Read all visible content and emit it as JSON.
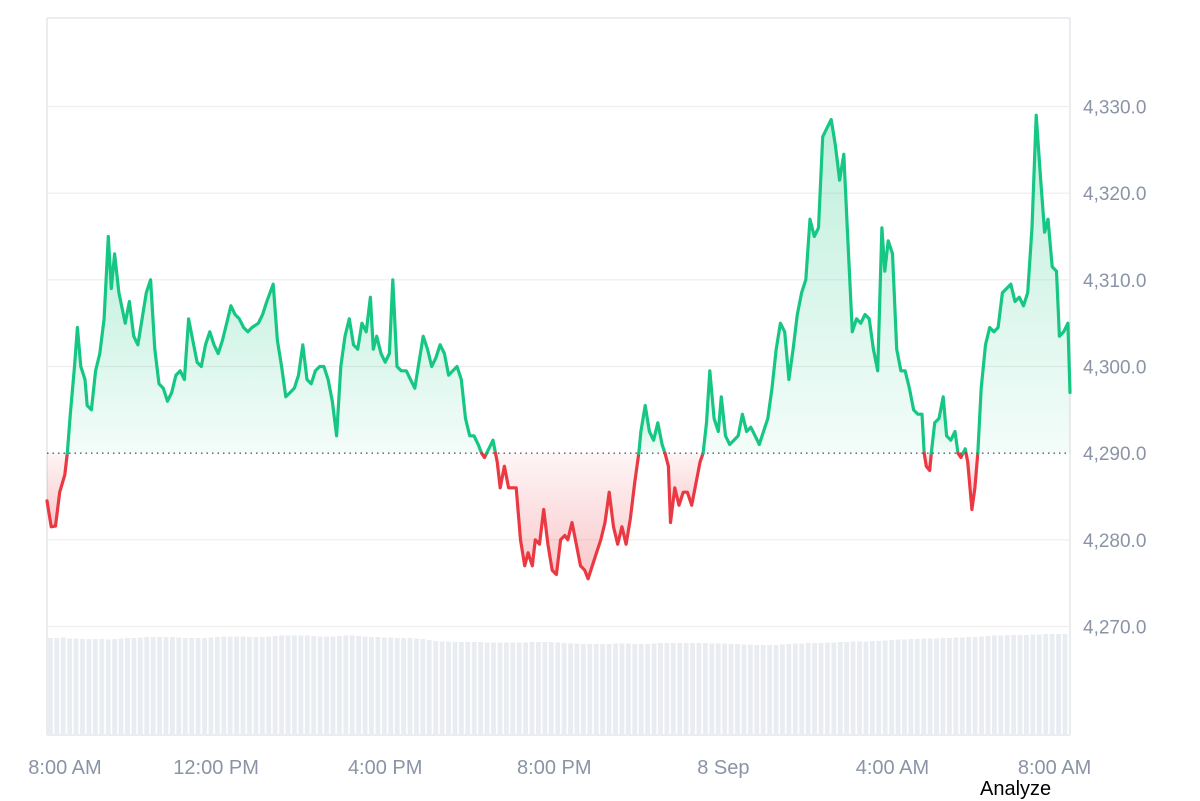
{
  "chart_data": {
    "type": "area",
    "baseline": 4290.0,
    "ylim": [
      4260,
      4340
    ],
    "y_ticks": [
      "4,330.0",
      "4,320.0",
      "4,310.0",
      "4,300.0",
      "4,290.0",
      "4,280.0",
      "4,270.0"
    ],
    "y_tick_values": [
      4330,
      4320,
      4310,
      4300,
      4290,
      4280,
      4270
    ],
    "x_ticks": [
      "8:00 AM",
      "12:00 PM",
      "4:00 PM",
      "8:00 PM",
      "8 Sep",
      "4:00 AM",
      "8:00 AM"
    ],
    "x_tick_hours": [
      0,
      4,
      8,
      12,
      16,
      20,
      24
    ],
    "xlim_hours": [
      0,
      24.2
    ],
    "grid": true,
    "colors": {
      "up": "#16c784",
      "down": "#ea3943",
      "volume": "#e9ecf1",
      "grid": "#eeeeee"
    },
    "price_series": [
      [
        0.0,
        4284.5
      ],
      [
        0.1,
        4281.5
      ],
      [
        0.2,
        4281.6
      ],
      [
        0.3,
        4285.5
      ],
      [
        0.42,
        4287.5
      ],
      [
        0.48,
        4290.0
      ],
      [
        0.55,
        4294.5
      ],
      [
        0.65,
        4300.0
      ],
      [
        0.72,
        4304.5
      ],
      [
        0.8,
        4300.0
      ],
      [
        0.9,
        4298.5
      ],
      [
        0.95,
        4295.5
      ],
      [
        1.05,
        4295.0
      ],
      [
        1.15,
        4299.5
      ],
      [
        1.25,
        4301.5
      ],
      [
        1.35,
        4305.5
      ],
      [
        1.45,
        4315.0
      ],
      [
        1.52,
        4309.0
      ],
      [
        1.6,
        4313.0
      ],
      [
        1.7,
        4308.5
      ],
      [
        1.85,
        4305.0
      ],
      [
        1.95,
        4307.5
      ],
      [
        2.05,
        4303.5
      ],
      [
        2.15,
        4302.5
      ],
      [
        2.25,
        4305.5
      ],
      [
        2.35,
        4308.5
      ],
      [
        2.45,
        4310.0
      ],
      [
        2.55,
        4302.0
      ],
      [
        2.65,
        4298.0
      ],
      [
        2.75,
        4297.5
      ],
      [
        2.85,
        4296.0
      ],
      [
        2.95,
        4297.0
      ],
      [
        3.05,
        4299.0
      ],
      [
        3.15,
        4299.5
      ],
      [
        3.25,
        4298.5
      ],
      [
        3.35,
        4305.5
      ],
      [
        3.45,
        4303.0
      ],
      [
        3.55,
        4300.5
      ],
      [
        3.65,
        4300.0
      ],
      [
        3.75,
        4302.5
      ],
      [
        3.85,
        4304.0
      ],
      [
        3.95,
        4302.5
      ],
      [
        4.05,
        4301.5
      ],
      [
        4.15,
        4303.0
      ],
      [
        4.25,
        4305.0
      ],
      [
        4.35,
        4307.0
      ],
      [
        4.45,
        4306.0
      ],
      [
        4.55,
        4305.5
      ],
      [
        4.65,
        4304.5
      ],
      [
        4.75,
        4304.0
      ],
      [
        4.85,
        4304.5
      ],
      [
        5.0,
        4305.0
      ],
      [
        5.1,
        4306.0
      ],
      [
        5.2,
        4307.5
      ],
      [
        5.35,
        4309.5
      ],
      [
        5.45,
        4303.0
      ],
      [
        5.55,
        4300.0
      ],
      [
        5.65,
        4296.5
      ],
      [
        5.75,
        4297.0
      ],
      [
        5.85,
        4297.5
      ],
      [
        5.95,
        4299.0
      ],
      [
        6.05,
        4302.5
      ],
      [
        6.15,
        4298.5
      ],
      [
        6.25,
        4298.0
      ],
      [
        6.35,
        4299.5
      ],
      [
        6.45,
        4300.0
      ],
      [
        6.55,
        4300.0
      ],
      [
        6.65,
        4298.5
      ],
      [
        6.75,
        4296.0
      ],
      [
        6.85,
        4292.0
      ],
      [
        6.95,
        4300.0
      ],
      [
        7.05,
        4303.5
      ],
      [
        7.15,
        4305.5
      ],
      [
        7.25,
        4302.5
      ],
      [
        7.35,
        4302.0
      ],
      [
        7.45,
        4305.0
      ],
      [
        7.55,
        4304.0
      ],
      [
        7.65,
        4308.0
      ],
      [
        7.72,
        4302.0
      ],
      [
        7.8,
        4303.5
      ],
      [
        7.9,
        4301.5
      ],
      [
        8.0,
        4300.5
      ],
      [
        8.1,
        4301.5
      ],
      [
        8.18,
        4310.0
      ],
      [
        8.28,
        4300.0
      ],
      [
        8.38,
        4299.5
      ],
      [
        8.5,
        4299.5
      ],
      [
        8.6,
        4298.5
      ],
      [
        8.7,
        4297.5
      ],
      [
        8.8,
        4300.5
      ],
      [
        8.9,
        4303.5
      ],
      [
        9.0,
        4302.0
      ],
      [
        9.1,
        4300.0
      ],
      [
        9.2,
        4301.0
      ],
      [
        9.3,
        4302.5
      ],
      [
        9.4,
        4301.5
      ],
      [
        9.5,
        4299.0
      ],
      [
        9.6,
        4299.5
      ],
      [
        9.7,
        4300.0
      ],
      [
        9.8,
        4298.5
      ],
      [
        9.9,
        4294.0
      ],
      [
        10.0,
        4292.0
      ],
      [
        10.1,
        4292.0
      ],
      [
        10.2,
        4291.0
      ],
      [
        10.28,
        4290.0
      ],
      [
        10.35,
        4289.5
      ],
      [
        10.45,
        4290.5
      ],
      [
        10.55,
        4291.5
      ],
      [
        10.65,
        4289.0
      ],
      [
        10.72,
        4286.0
      ],
      [
        10.82,
        4288.5
      ],
      [
        10.92,
        4286.0
      ],
      [
        11.0,
        4286.0
      ],
      [
        11.1,
        4286.0
      ],
      [
        11.2,
        4280.0
      ],
      [
        11.3,
        4277.0
      ],
      [
        11.38,
        4278.5
      ],
      [
        11.48,
        4277.0
      ],
      [
        11.55,
        4280.0
      ],
      [
        11.65,
        4279.5
      ],
      [
        11.75,
        4283.5
      ],
      [
        11.85,
        4279.5
      ],
      [
        11.95,
        4276.5
      ],
      [
        12.05,
        4276.0
      ],
      [
        12.15,
        4280.0
      ],
      [
        12.25,
        4280.5
      ],
      [
        12.32,
        4280.0
      ],
      [
        12.42,
        4282.0
      ],
      [
        12.52,
        4279.5
      ],
      [
        12.62,
        4277.0
      ],
      [
        12.72,
        4276.5
      ],
      [
        12.8,
        4275.5
      ],
      [
        12.9,
        4277.0
      ],
      [
        13.0,
        4278.5
      ],
      [
        13.1,
        4280.0
      ],
      [
        13.2,
        4282.0
      ],
      [
        13.3,
        4285.5
      ],
      [
        13.4,
        4281.5
      ],
      [
        13.5,
        4279.5
      ],
      [
        13.6,
        4281.5
      ],
      [
        13.7,
        4279.5
      ],
      [
        13.8,
        4282.5
      ],
      [
        13.9,
        4286.5
      ],
      [
        14.0,
        4290.0
      ],
      [
        14.05,
        4292.5
      ],
      [
        14.15,
        4295.5
      ],
      [
        14.25,
        4292.5
      ],
      [
        14.35,
        4291.5
      ],
      [
        14.45,
        4293.5
      ],
      [
        14.55,
        4291.0
      ],
      [
        14.62,
        4290.0
      ],
      [
        14.7,
        4288.5
      ],
      [
        14.75,
        4282.0
      ],
      [
        14.85,
        4286.0
      ],
      [
        14.95,
        4284.0
      ],
      [
        15.05,
        4285.5
      ],
      [
        15.15,
        4285.5
      ],
      [
        15.25,
        4284.0
      ],
      [
        15.35,
        4286.5
      ],
      [
        15.45,
        4289.0
      ],
      [
        15.52,
        4290.0
      ],
      [
        15.6,
        4293.5
      ],
      [
        15.68,
        4299.5
      ],
      [
        15.78,
        4294.0
      ],
      [
        15.88,
        4292.5
      ],
      [
        15.95,
        4296.5
      ],
      [
        16.05,
        4292.0
      ],
      [
        16.15,
        4291.0
      ],
      [
        16.25,
        4291.5
      ],
      [
        16.35,
        4292.0
      ],
      [
        16.45,
        4294.5
      ],
      [
        16.55,
        4292.5
      ],
      [
        16.65,
        4293.0
      ],
      [
        16.75,
        4292.0
      ],
      [
        16.85,
        4291.0
      ],
      [
        16.95,
        4292.5
      ],
      [
        17.05,
        4294.0
      ],
      [
        17.15,
        4297.5
      ],
      [
        17.25,
        4302.0
      ],
      [
        17.35,
        4305.0
      ],
      [
        17.45,
        4304.0
      ],
      [
        17.55,
        4298.5
      ],
      [
        17.65,
        4302.0
      ],
      [
        17.75,
        4306.0
      ],
      [
        17.85,
        4308.5
      ],
      [
        17.95,
        4310.0
      ],
      [
        18.05,
        4317.0
      ],
      [
        18.15,
        4315.0
      ],
      [
        18.25,
        4316.0
      ],
      [
        18.35,
        4326.5
      ],
      [
        18.45,
        4327.5
      ],
      [
        18.55,
        4328.5
      ],
      [
        18.65,
        4325.5
      ],
      [
        18.75,
        4321.5
      ],
      [
        18.85,
        4324.5
      ],
      [
        18.95,
        4314.0
      ],
      [
        19.05,
        4304.0
      ],
      [
        19.15,
        4305.5
      ],
      [
        19.25,
        4305.0
      ],
      [
        19.35,
        4306.0
      ],
      [
        19.45,
        4305.5
      ],
      [
        19.55,
        4302.0
      ],
      [
        19.65,
        4299.5
      ],
      [
        19.75,
        4316.0
      ],
      [
        19.82,
        4311.0
      ],
      [
        19.9,
        4314.5
      ],
      [
        20.0,
        4313.0
      ],
      [
        20.1,
        4302.0
      ],
      [
        20.2,
        4299.5
      ],
      [
        20.3,
        4299.5
      ],
      [
        20.4,
        4297.5
      ],
      [
        20.5,
        4295.0
      ],
      [
        20.6,
        4294.5
      ],
      [
        20.7,
        4294.5
      ],
      [
        20.75,
        4290.0
      ],
      [
        20.8,
        4288.5
      ],
      [
        20.88,
        4288.0
      ],
      [
        20.92,
        4290.0
      ],
      [
        21.0,
        4293.5
      ],
      [
        21.1,
        4294.0
      ],
      [
        21.2,
        4296.5
      ],
      [
        21.28,
        4292.0
      ],
      [
        21.38,
        4291.5
      ],
      [
        21.48,
        4292.5
      ],
      [
        21.55,
        4290.0
      ],
      [
        21.62,
        4289.5
      ],
      [
        21.72,
        4290.5
      ],
      [
        21.78,
        4289.0
      ],
      [
        21.88,
        4283.5
      ],
      [
        21.95,
        4286.0
      ],
      [
        22.02,
        4290.0
      ],
      [
        22.1,
        4297.5
      ],
      [
        22.2,
        4302.5
      ],
      [
        22.3,
        4304.5
      ],
      [
        22.4,
        4304.0
      ],
      [
        22.5,
        4304.5
      ],
      [
        22.6,
        4308.5
      ],
      [
        22.7,
        4309.0
      ],
      [
        22.8,
        4309.5
      ],
      [
        22.9,
        4307.5
      ],
      [
        23.0,
        4308.0
      ],
      [
        23.1,
        4307.0
      ],
      [
        23.2,
        4308.5
      ],
      [
        23.3,
        4316.0
      ],
      [
        23.4,
        4329.0
      ],
      [
        23.5,
        4322.0
      ],
      [
        23.6,
        4315.5
      ],
      [
        23.68,
        4317.0
      ],
      [
        23.78,
        4311.5
      ],
      [
        23.88,
        4311.0
      ],
      [
        23.95,
        4303.5
      ],
      [
        24.05,
        4304.0
      ],
      [
        24.15,
        4305.0
      ],
      [
        24.2,
        4297.0
      ]
    ],
    "volume_series": [
      0.97,
      0.97,
      0.98,
      0.96,
      0.96,
      0.95,
      0.95,
      0.95,
      0.95,
      0.94,
      0.95,
      0.96,
      0.97,
      0.97,
      0.98,
      0.99,
      0.99,
      0.99,
      0.99,
      0.99,
      0.98,
      0.97,
      0.97,
      0.97,
      0.97,
      0.98,
      0.99,
      1.0,
      1.0,
      1.0,
      1.0,
      0.99,
      0.99,
      0.99,
      1.0,
      1.01,
      1.02,
      1.02,
      1.02,
      1.02,
      1.02,
      1.01,
      1.0,
      1.0,
      1.0,
      1.01,
      1.02,
      1.02,
      1.01,
      1.0,
      0.99,
      0.99,
      0.98,
      0.98,
      0.97,
      0.97,
      0.97,
      0.96,
      0.95,
      0.93,
      0.91,
      0.9,
      0.9,
      0.89,
      0.89,
      0.89,
      0.89,
      0.89,
      0.88,
      0.88,
      0.88,
      0.88,
      0.88,
      0.88,
      0.88,
      0.89,
      0.89,
      0.89,
      0.89,
      0.88,
      0.87,
      0.86,
      0.86,
      0.85,
      0.85,
      0.85,
      0.85,
      0.85,
      0.86,
      0.86,
      0.86,
      0.85,
      0.85,
      0.85,
      0.86,
      0.87,
      0.87,
      0.87,
      0.87,
      0.87,
      0.87,
      0.87,
      0.87,
      0.86,
      0.86,
      0.86,
      0.85,
      0.85,
      0.84,
      0.84,
      0.83,
      0.83,
      0.83,
      0.83,
      0.84,
      0.85,
      0.86,
      0.86,
      0.87,
      0.87,
      0.87,
      0.88,
      0.88,
      0.89,
      0.89,
      0.9,
      0.9,
      0.9,
      0.91,
      0.91,
      0.92,
      0.93,
      0.94,
      0.94,
      0.95,
      0.95,
      0.96,
      0.96,
      0.96,
      0.97,
      0.97,
      0.98,
      0.98,
      0.99,
      0.99,
      1.0,
      1.01,
      1.02,
      1.02,
      1.03,
      1.03,
      1.03,
      1.03,
      1.04,
      1.04,
      1.05,
      1.05,
      1.05,
      1.05
    ]
  },
  "ui": {
    "analyze_label": "Analyze"
  }
}
